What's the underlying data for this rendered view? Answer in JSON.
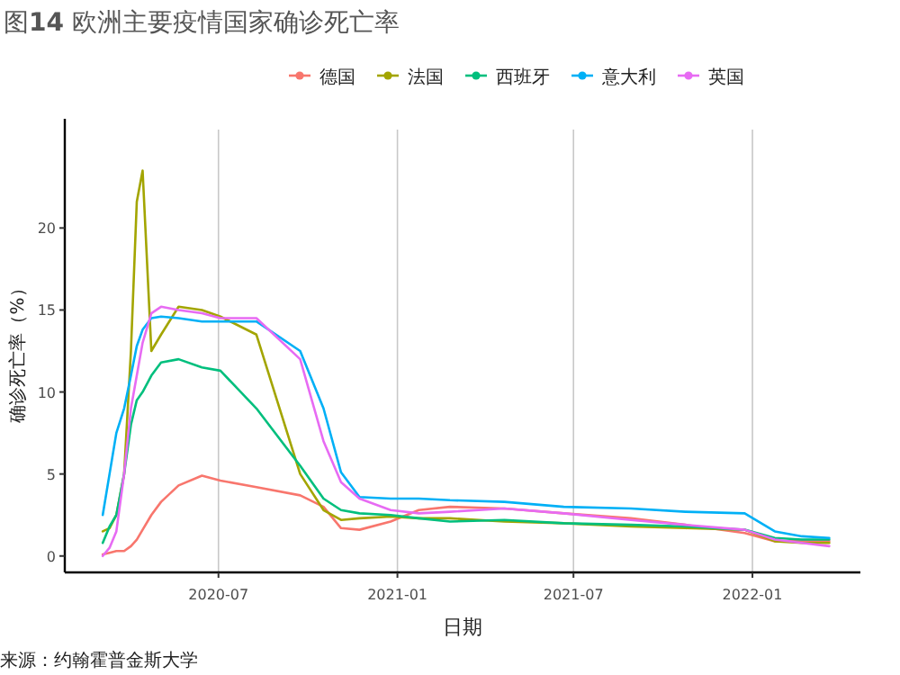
{
  "chart_data": {
    "type": "line",
    "title": "图**14** 欧洲主要疫情国家确诊死亡率",
    "xlabel": "日期",
    "ylabel": "确诊死亡率（%）",
    "annotations": [
      "来源：约翰霍普金斯大学"
    ],
    "x": [
      "2020-03-04",
      "2020-03-11",
      "2020-03-18",
      "2020-03-26",
      "2020-04-02",
      "2020-04-08",
      "2020-04-14",
      "2020-04-23",
      "2020-05-03",
      "2020-05-21",
      "2020-06-14",
      "2020-07-03",
      "2020-08-09",
      "2020-09-23",
      "2020-10-17",
      "2020-11-04",
      "2020-11-23",
      "2020-12-25",
      "2021-01-23",
      "2021-02-24",
      "2021-04-21",
      "2021-06-21",
      "2021-08-29",
      "2021-10-24",
      "2021-12-24",
      "2022-01-24",
      "2022-02-21",
      "2022-03-21"
    ],
    "series": [
      {
        "name": "德国",
        "color": "#f8766d",
        "values": [
          0.1,
          0.2,
          0.3,
          0.3,
          0.6,
          1.0,
          1.6,
          2.5,
          3.3,
          4.3,
          4.9,
          4.6,
          4.2,
          3.7,
          3.0,
          1.7,
          1.6,
          2.1,
          2.8,
          3.0,
          2.9,
          2.6,
          2.3,
          1.9,
          1.4,
          0.9,
          0.9,
          0.9
        ]
      },
      {
        "name": "法国",
        "color": "#a3a500",
        "values": [
          1.5,
          1.7,
          2.5,
          5,
          12.5,
          21.6,
          23.5,
          12.5,
          13.5,
          15.2,
          15.0,
          14.6,
          13.5,
          5,
          2.8,
          2.2,
          2.3,
          2.4,
          2.3,
          2.3,
          2.1,
          2.0,
          1.8,
          1.7,
          1.6,
          0.9,
          0.8,
          0.8
        ]
      },
      {
        "name": "西班牙",
        "color": "#00bf7d",
        "values": [
          0.8,
          1.8,
          2.5,
          5,
          8,
          9.5,
          10,
          11,
          11.8,
          12,
          11.5,
          11.3,
          9,
          5.5,
          3.5,
          2.8,
          2.6,
          2.5,
          2.3,
          2.1,
          2.2,
          2.0,
          1.9,
          1.8,
          1.6,
          1.1,
          1.0,
          1.0
        ]
      },
      {
        "name": "意大利",
        "color": "#00b0f6",
        "values": [
          2.5,
          5,
          7.5,
          9,
          11,
          12.8,
          13.8,
          14.5,
          14.6,
          14.5,
          14.3,
          14.3,
          14.3,
          12.5,
          9,
          5.1,
          3.6,
          3.5,
          3.5,
          3.4,
          3.3,
          3.0,
          2.9,
          2.7,
          2.6,
          1.5,
          1.2,
          1.1
        ]
      },
      {
        "name": "英国",
        "color": "#e76bf3",
        "values": [
          0,
          0.5,
          1.5,
          5,
          9,
          11,
          13,
          14.8,
          15.2,
          15,
          14.8,
          14.5,
          14.5,
          12,
          7,
          4.5,
          3.5,
          2.8,
          2.6,
          2.7,
          2.9,
          2.6,
          2.2,
          1.9,
          1.6,
          1.0,
          0.8,
          0.6
        ]
      }
    ],
    "xlim": [
      "2020-01-25",
      "2022-04-22"
    ],
    "xticks": [
      "2020-07",
      "2021-01",
      "2021-07",
      "2022-01"
    ],
    "ylim": [
      -1,
      26
    ],
    "yticks": [
      0,
      5,
      10,
      15,
      20
    ],
    "grid": "x",
    "legend": "top",
    "line_style": "solid"
  }
}
